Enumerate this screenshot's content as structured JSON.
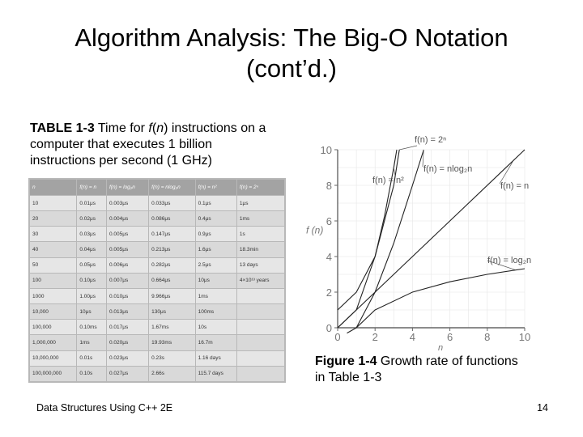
{
  "slide": {
    "title_line1": "Algorithm Analysis: The Big-O Notation",
    "title_line2": "(cont’d.)",
    "footer": "Data Structures Using C++ 2E",
    "page_number": "14"
  },
  "table_caption": {
    "label": "TABLE 1-3",
    "text_before": " Time for ",
    "f": "f",
    "paren_open": "(",
    "n": "n",
    "text_after": ") instructions on a computer that executes 1 billion instructions per second (1 GHz)"
  },
  "table": {
    "headers": [
      "n",
      "f(n) = n",
      "f(n) = log₂n",
      "f(n) = nlog₂n",
      "f(n) = n²",
      "f(n) = 2ⁿ"
    ],
    "rows": [
      [
        "10",
        "0.01μs",
        "0.003μs",
        "0.033μs",
        "0.1μs",
        "1μs"
      ],
      [
        "20",
        "0.02μs",
        "0.004μs",
        "0.086μs",
        "0.4μs",
        "1ms"
      ],
      [
        "30",
        "0.03μs",
        "0.005μs",
        "0.147μs",
        "0.9μs",
        "1s"
      ],
      [
        "40",
        "0.04μs",
        "0.005μs",
        "0.213μs",
        "1.6μs",
        "18.3min"
      ],
      [
        "50",
        "0.05μs",
        "0.006μs",
        "0.282μs",
        "2.5μs",
        "13 days"
      ],
      [
        "100",
        "0.10μs",
        "0.007μs",
        "0.664μs",
        "10μs",
        "4×10¹³ years"
      ],
      [
        "1000",
        "1.00μs",
        "0.010μs",
        "9.966μs",
        "1ms",
        ""
      ],
      [
        "10,000",
        "10μs",
        "0.013μs",
        "130μs",
        "100ms",
        ""
      ],
      [
        "100,000",
        "0.10ms",
        "0.017μs",
        "1.67ms",
        "10s",
        ""
      ],
      [
        "1,000,000",
        "1ms",
        "0.020μs",
        "19.93ms",
        "16.7m",
        ""
      ],
      [
        "10,000,000",
        "0.01s",
        "0.023μs",
        "0.23s",
        "1.16 days",
        ""
      ],
      [
        "100,000,000",
        "0.10s",
        "0.027μs",
        "2.66s",
        "115.7 days",
        ""
      ]
    ]
  },
  "figure_caption": {
    "label": "Figure 1-4",
    "text": " Growth rate of functions in Table 1-3"
  },
  "chart_data": {
    "type": "line",
    "xlabel": "n",
    "ylabel": "f (n)",
    "xlim": [
      0,
      10
    ],
    "ylim": [
      0,
      10
    ],
    "x_ticks": [
      "0",
      "2",
      "4",
      "6",
      "8",
      "10"
    ],
    "y_ticks": [
      "0",
      "2",
      "4",
      "6",
      "8",
      "10"
    ],
    "series": [
      {
        "name": "f(n) = 2ⁿ",
        "points": [
          [
            0,
            1
          ],
          [
            1,
            2
          ],
          [
            2,
            4
          ],
          [
            3,
            8
          ],
          [
            3.3,
            10
          ]
        ]
      },
      {
        "name": "f(n) = n²",
        "points": [
          [
            0,
            0
          ],
          [
            1,
            1
          ],
          [
            2,
            4
          ],
          [
            2.5,
            6.25
          ],
          [
            3,
            9
          ],
          [
            3.16,
            10
          ]
        ]
      },
      {
        "name": "f(n) = nlog₂n",
        "points": [
          [
            1,
            0
          ],
          [
            2,
            2
          ],
          [
            3,
            4.75
          ],
          [
            4,
            8
          ],
          [
            4.6,
            10
          ]
        ]
      },
      {
        "name": "f(n) = n",
        "points": [
          [
            0,
            0
          ],
          [
            10,
            10
          ]
        ]
      },
      {
        "name": "f(n) = log₂n",
        "points": [
          [
            0.5,
            -1
          ],
          [
            1,
            0
          ],
          [
            2,
            1
          ],
          [
            4,
            2
          ],
          [
            6,
            2.58
          ],
          [
            8,
            3
          ],
          [
            10,
            3.32
          ]
        ]
      }
    ]
  }
}
